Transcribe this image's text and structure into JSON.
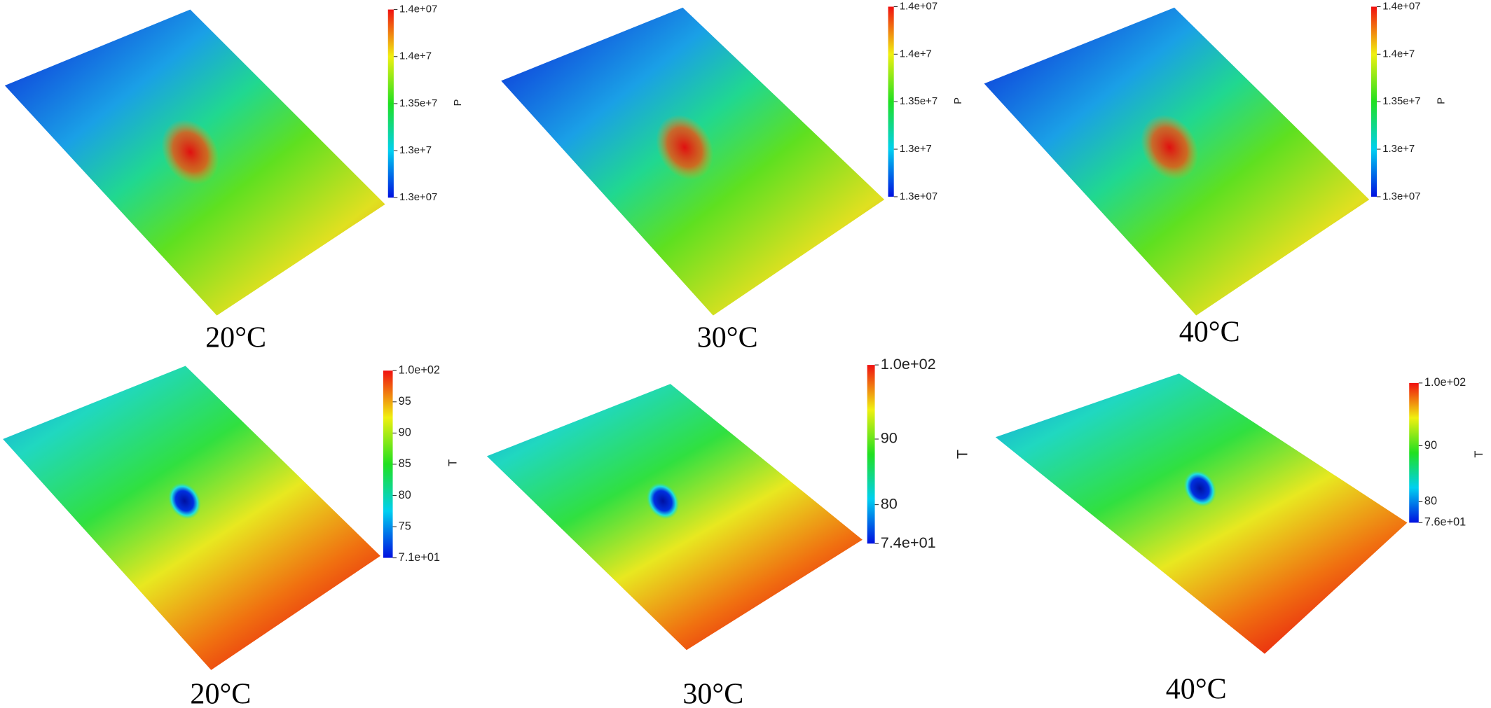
{
  "panels": [
    {
      "label": "20°C",
      "colorbar": {
        "title": "P",
        "ticks": [
          "1.4e+07",
          "1.4e+7",
          "1.35e+7",
          "1.3e+7",
          "1.3e+07"
        ]
      }
    },
    {
      "label": "30°C",
      "colorbar": {
        "title": "P",
        "ticks": [
          "1.4e+07",
          "1.4e+7",
          "1.35e+7",
          "1.3e+7",
          "1.3e+07"
        ]
      }
    },
    {
      "label": "40°C",
      "colorbar": {
        "title": "P",
        "ticks": [
          "1.4e+07",
          "1.4e+7",
          "1.35e+7",
          "1.3e+7",
          "1.3e+07"
        ]
      }
    },
    {
      "label": "20°C",
      "colorbar": {
        "title": "T",
        "ticks": [
          "1.0e+02",
          "95",
          "90",
          "85",
          "80",
          "75",
          "7.1e+01"
        ]
      }
    },
    {
      "label": "30°C",
      "colorbar": {
        "title": "T",
        "ticks": [
          "1.0e+02",
          "90",
          "80",
          "7.4e+01"
        ]
      }
    },
    {
      "label": "40°C",
      "colorbar": {
        "title": "T",
        "ticks": [
          "1.0e+02",
          "90",
          "80",
          "7.6e+01"
        ]
      }
    }
  ]
}
